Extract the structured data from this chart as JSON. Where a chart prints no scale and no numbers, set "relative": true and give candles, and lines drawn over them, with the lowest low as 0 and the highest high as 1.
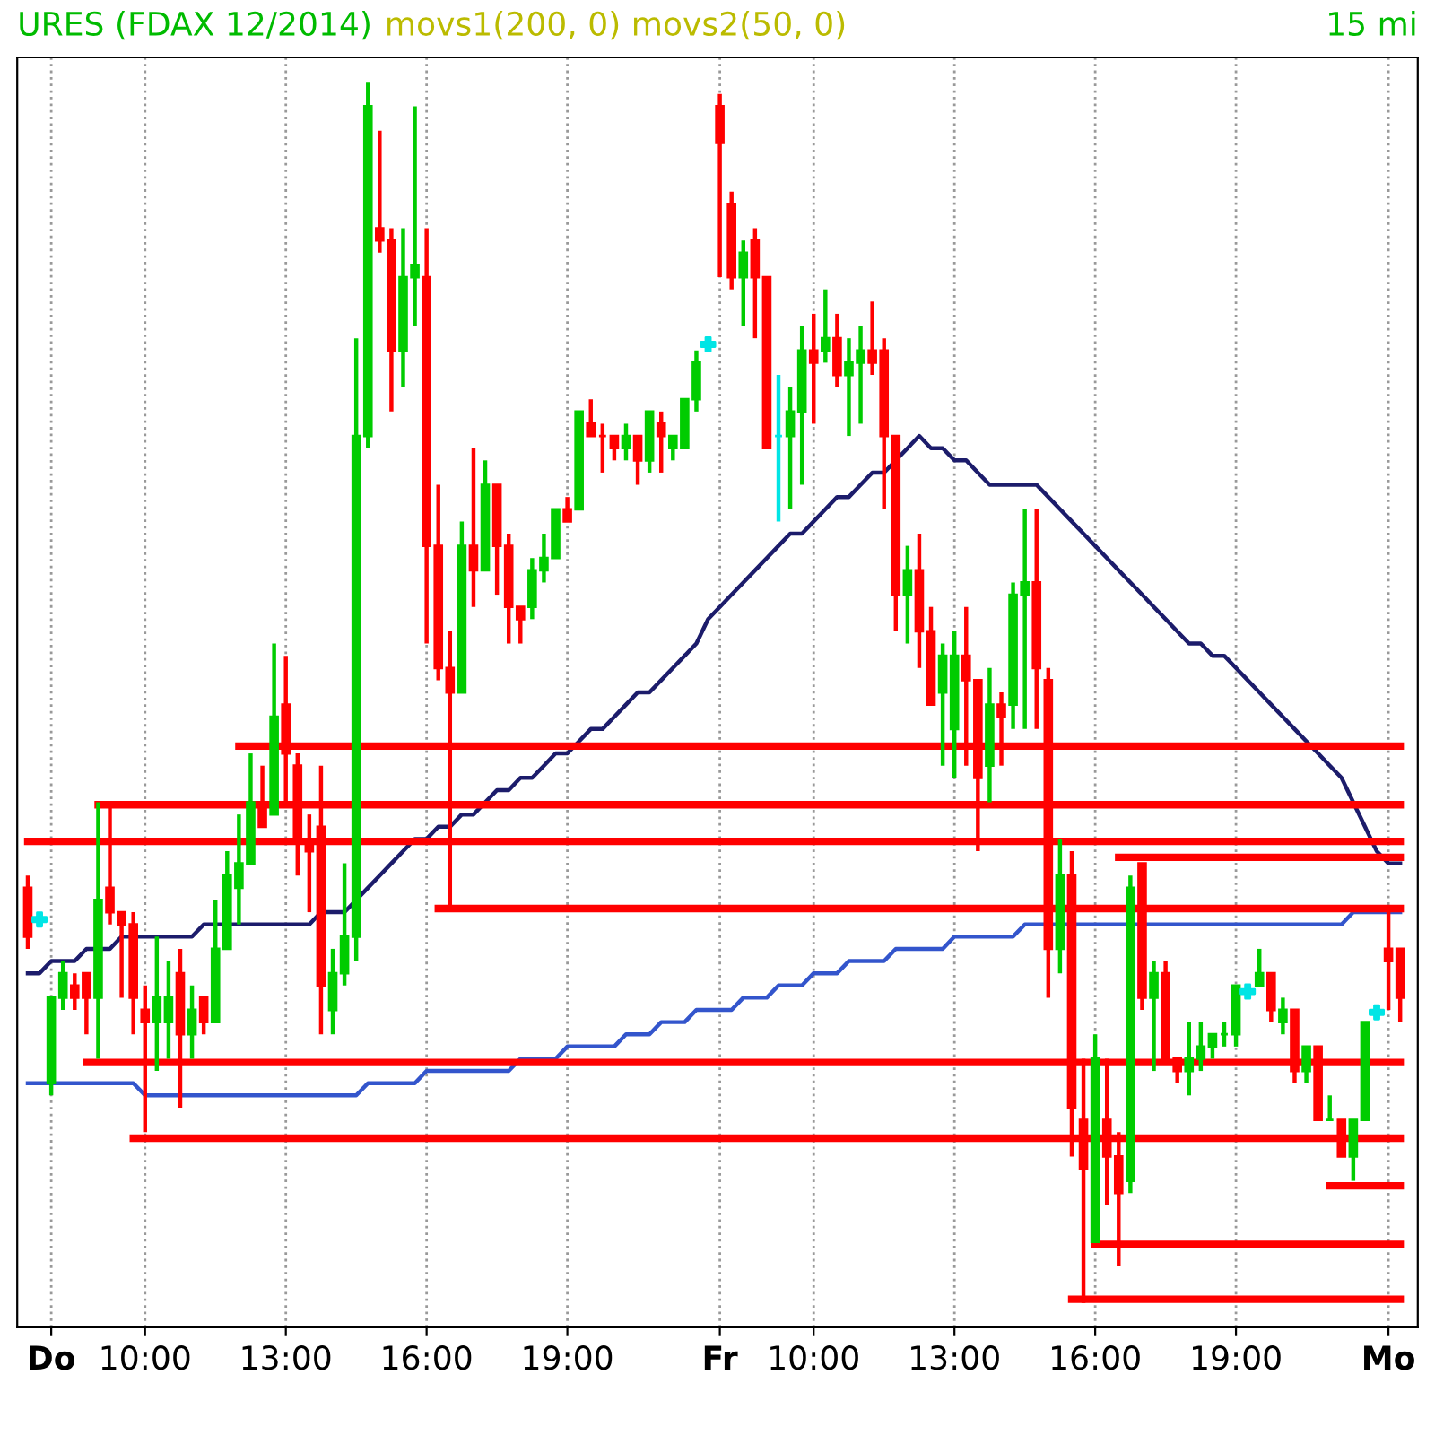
{
  "chart_data": {
    "type": "candlestick",
    "title": "URES (FDAX 12/2014)",
    "subtitle": "movs1(200, 0) movs2(50, 0)",
    "annotations": [
      "15 mi"
    ],
    "relative": true,
    "grid": "x",
    "tick_labels": "x",
    "categories": [
      null,
      null,
      "Do",
      null,
      null,
      null,
      null,
      null,
      null,
      null,
      "10:00",
      null,
      null,
      null,
      null,
      null,
      null,
      null,
      null,
      null,
      null,
      null,
      "13:00",
      null,
      null,
      null,
      null,
      null,
      null,
      null,
      null,
      null,
      null,
      null,
      "16:00",
      null,
      null,
      null,
      null,
      null,
      null,
      null,
      null,
      null,
      null,
      null,
      "19:00",
      null,
      null,
      null,
      null,
      null,
      null,
      null,
      null,
      null,
      null,
      null,
      null,
      "Fr",
      null,
      null,
      null,
      null,
      null,
      null,
      null,
      "10:00",
      null,
      null,
      null,
      null,
      null,
      null,
      null,
      null,
      null,
      null,
      null,
      "13:00",
      null,
      null,
      null,
      null,
      null,
      null,
      null,
      null,
      null,
      null,
      null,
      "16:00",
      null,
      null,
      null,
      null,
      null,
      null,
      null,
      null,
      null,
      null,
      null,
      "19:00",
      null,
      null,
      null,
      null,
      null,
      null,
      null,
      null,
      null,
      null,
      null,
      null,
      "Mo",
      null
    ],
    "ohlc": [
      [
        0.34,
        0.35,
        0.29,
        0.3
      ],
      null,
      [
        0.18,
        0.25,
        0.17,
        0.25
      ],
      [
        0.25,
        0.28,
        0.24,
        0.27
      ],
      [
        0.26,
        0.27,
        0.24,
        0.25
      ],
      [
        0.27,
        0.27,
        0.22,
        0.25
      ],
      [
        0.25,
        0.41,
        0.2,
        0.33
      ],
      [
        0.34,
        0.41,
        0.31,
        0.32
      ],
      [
        0.32,
        0.32,
        0.25,
        0.31
      ],
      [
        0.31,
        0.32,
        0.22,
        0.25
      ],
      [
        0.24,
        0.26,
        0.14,
        0.23
      ],
      [
        0.23,
        0.3,
        0.19,
        0.25
      ],
      [
        0.23,
        0.28,
        0.2,
        0.25
      ],
      [
        0.27,
        0.29,
        0.16,
        0.22
      ],
      [
        0.22,
        0.26,
        0.2,
        0.24
      ],
      [
        0.25,
        0.25,
        0.22,
        0.23
      ],
      [
        0.23,
        0.33,
        0.23,
        0.29
      ],
      [
        0.29,
        0.37,
        0.29,
        0.35
      ],
      [
        0.34,
        0.4,
        0.31,
        0.36
      ],
      [
        0.36,
        0.45,
        0.36,
        0.41
      ],
      [
        0.41,
        0.44,
        0.39,
        0.39
      ],
      [
        0.4,
        0.54,
        0.4,
        0.48
      ],
      [
        0.49,
        0.53,
        0.41,
        0.45
      ],
      [
        0.44,
        0.45,
        0.35,
        0.38
      ],
      [
        0.38,
        0.4,
        0.32,
        0.37
      ],
      [
        0.39,
        0.44,
        0.22,
        0.26
      ],
      [
        0.24,
        0.29,
        0.22,
        0.27
      ],
      [
        0.27,
        0.36,
        0.26,
        0.3
      ],
      [
        0.3,
        0.79,
        0.28,
        0.71
      ],
      [
        0.71,
        1.0,
        0.7,
        0.98
      ],
      [
        0.88,
        0.96,
        0.86,
        0.87
      ],
      [
        0.87,
        0.88,
        0.73,
        0.78
      ],
      [
        0.78,
        0.88,
        0.75,
        0.84
      ],
      [
        0.84,
        0.98,
        0.8,
        0.85
      ],
      [
        0.84,
        0.88,
        0.54,
        0.62
      ],
      [
        0.62,
        0.67,
        0.51,
        0.52
      ],
      [
        0.52,
        0.55,
        0.32,
        0.5
      ],
      [
        0.5,
        0.64,
        0.5,
        0.62
      ],
      [
        0.62,
        0.7,
        0.57,
        0.6
      ],
      [
        0.6,
        0.69,
        0.6,
        0.67
      ],
      [
        0.67,
        0.67,
        0.58,
        0.62
      ],
      [
        0.62,
        0.63,
        0.54,
        0.57
      ],
      [
        0.57,
        0.57,
        0.54,
        0.56
      ],
      [
        0.57,
        0.61,
        0.56,
        0.6
      ],
      [
        0.6,
        0.63,
        0.59,
        0.61
      ],
      [
        0.61,
        0.65,
        0.61,
        0.65
      ],
      [
        0.65,
        0.66,
        0.64,
        0.64
      ],
      [
        0.65,
        0.73,
        0.65,
        0.73
      ],
      [
        0.72,
        0.74,
        0.71,
        0.71
      ],
      [
        0.71,
        0.72,
        0.68,
        0.71
      ],
      [
        0.71,
        0.71,
        0.69,
        0.7
      ],
      [
        0.7,
        0.72,
        0.69,
        0.71
      ],
      [
        0.71,
        0.71,
        0.67,
        0.69
      ],
      [
        0.69,
        0.73,
        0.68,
        0.73
      ],
      [
        0.72,
        0.73,
        0.68,
        0.71
      ],
      [
        0.7,
        0.71,
        0.69,
        0.71
      ],
      [
        0.7,
        0.74,
        0.7,
        0.74
      ],
      [
        0.74,
        0.78,
        0.73,
        0.77
      ],
      null,
      [
        0.98,
        0.99,
        0.84,
        0.95
      ],
      [
        0.9,
        0.91,
        0.83,
        0.84
      ],
      [
        0.84,
        0.87,
        0.8,
        0.86
      ],
      [
        0.87,
        0.88,
        0.79,
        0.84
      ],
      [
        0.84,
        0.84,
        0.7,
        0.7
      ],
      [
        0.71,
        0.76,
        0.64,
        0.71
      ],
      [
        0.71,
        0.75,
        0.65,
        0.73
      ],
      [
        0.73,
        0.8,
        0.67,
        0.78
      ],
      [
        0.78,
        0.81,
        0.72,
        0.77
      ],
      [
        0.78,
        0.83,
        0.77,
        0.79
      ],
      [
        0.79,
        0.81,
        0.75,
        0.76
      ],
      [
        0.76,
        0.79,
        0.71,
        0.77
      ],
      [
        0.77,
        0.8,
        0.72,
        0.78
      ],
      [
        0.78,
        0.82,
        0.76,
        0.77
      ],
      [
        0.78,
        0.79,
        0.65,
        0.71
      ],
      [
        0.71,
        0.71,
        0.55,
        0.58
      ],
      [
        0.58,
        0.62,
        0.54,
        0.6
      ],
      [
        0.6,
        0.63,
        0.52,
        0.55
      ],
      [
        0.55,
        0.57,
        0.49,
        0.49
      ],
      [
        0.5,
        0.54,
        0.44,
        0.53
      ],
      [
        0.47,
        0.55,
        0.43,
        0.53
      ],
      [
        0.53,
        0.57,
        0.44,
        0.51
      ],
      [
        0.51,
        0.51,
        0.37,
        0.43
      ],
      [
        0.44,
        0.52,
        0.41,
        0.49
      ],
      [
        0.49,
        0.5,
        0.44,
        0.48
      ],
      [
        0.49,
        0.59,
        0.47,
        0.58
      ],
      [
        0.58,
        0.65,
        0.47,
        0.59
      ],
      [
        0.59,
        0.65,
        0.47,
        0.52
      ],
      [
        0.51,
        0.52,
        0.25,
        0.29
      ],
      [
        0.29,
        0.38,
        0.27,
        0.35
      ],
      [
        0.35,
        0.37,
        0.12,
        0.16
      ],
      [
        0.15,
        0.2,
        0,
        0.11
      ],
      [
        0.05,
        0.22,
        0.05,
        0.2
      ],
      [
        0.15,
        0.2,
        0.08,
        0.12
      ],
      [
        0.12,
        0.14,
        0.03,
        0.09
      ],
      [
        0.1,
        0.35,
        0.09,
        0.34
      ],
      [
        0.36,
        0.36,
        0.24,
        0.25
      ],
      [
        0.25,
        0.28,
        0.19,
        0.27
      ],
      [
        0.27,
        0.28,
        0.2,
        0.2
      ],
      [
        0.2,
        0.2,
        0.18,
        0.19
      ],
      [
        0.19,
        0.23,
        0.17,
        0.2
      ],
      [
        0.2,
        0.23,
        0.19,
        0.21
      ],
      [
        0.21,
        0.22,
        0.2,
        0.22
      ],
      [
        0.22,
        0.23,
        0.21,
        0.22
      ],
      [
        0.22,
        0.26,
        0.21,
        0.26
      ],
      null,
      [
        0.26,
        0.29,
        0.26,
        0.27
      ],
      [
        0.27,
        0.27,
        0.23,
        0.24
      ],
      [
        0.23,
        0.25,
        0.22,
        0.24
      ],
      [
        0.24,
        0.24,
        0.18,
        0.19
      ],
      [
        0.19,
        0.21,
        0.18,
        0.21
      ],
      [
        0.21,
        0.21,
        0.15,
        0.15
      ],
      [
        0.15,
        0.17,
        0.15,
        0.15
      ],
      [
        0.15,
        0.15,
        0.12,
        0.12
      ],
      [
        0.12,
        0.15,
        0.1,
        0.15
      ],
      [
        0.15,
        0.23,
        0.15,
        0.23
      ],
      null,
      [
        0.29,
        0.32,
        0.24,
        0.28
      ],
      [
        0.29,
        0.29,
        0.23,
        0.25
      ]
    ],
    "colors": [
      "#ff0000",
      null,
      "#00cc00",
      "#00cc00",
      "#ff0000",
      "#ff0000",
      "#00cc00",
      "#ff0000",
      "#ff0000",
      "#ff0000",
      "#ff0000",
      "#00cc00",
      "#00cc00",
      "#ff0000",
      "#00cc00",
      "#ff0000",
      "#00cc00",
      "#00cc00",
      "#00cc00",
      "#00cc00",
      "#ff0000",
      "#00cc00",
      "#ff0000",
      "#ff0000",
      "#ff0000",
      "#ff0000",
      "#00cc00",
      "#00cc00",
      "#00cc00",
      "#00cc00",
      "#ff0000",
      "#ff0000",
      "#00cc00",
      "#00cc00",
      "#ff0000",
      "#ff0000",
      "#ff0000",
      "#00cc00",
      "#ff0000",
      "#00cc00",
      "#ff0000",
      "#ff0000",
      "#ff0000",
      "#00cc00",
      "#00cc00",
      "#00cc00",
      "#ff0000",
      "#00cc00",
      "#ff0000",
      "#ff0000",
      "#ff0000",
      "#00cc00",
      "#ff0000",
      "#00cc00",
      "#ff0000",
      "#00cc00",
      "#00cc00",
      "#00cc00",
      null,
      "#ff0000",
      "#ff0000",
      "#00cc00",
      "#ff0000",
      "#ff0000",
      "#00e5e5",
      "#00cc00",
      "#00cc00",
      "#ff0000",
      "#00cc00",
      "#ff0000",
      "#00cc00",
      "#00cc00",
      "#ff0000",
      "#ff0000",
      "#ff0000",
      "#00cc00",
      "#ff0000",
      "#ff0000",
      "#00cc00",
      "#00cc00",
      "#ff0000",
      "#ff0000",
      "#00cc00",
      "#ff0000",
      "#00cc00",
      "#00cc00",
      "#ff0000",
      "#ff0000",
      "#00cc00",
      "#ff0000",
      "#ff0000",
      "#00cc00",
      "#ff0000",
      "#ff0000",
      "#00cc00",
      "#ff0000",
      "#00cc00",
      "#ff0000",
      "#ff0000",
      "#00cc00",
      "#00cc00",
      "#00cc00",
      "#00cc00",
      "#00cc00",
      null,
      "#00cc00",
      "#ff0000",
      "#00cc00",
      "#ff0000",
      "#00cc00",
      "#ff0000",
      "#00cc00",
      "#ff0000",
      "#00cc00",
      "#00cc00",
      null,
      "#ff0000",
      "#ff0000"
    ],
    "series": [
      {
        "type": "line",
        "color": "#1c1c6b",
        "values": [
          0.27,
          0.27,
          0.28,
          0.28,
          0.28,
          0.29,
          0.29,
          0.29,
          0.3,
          0.3,
          0.3,
          0.3,
          0.3,
          0.3,
          0.3,
          0.31,
          0.31,
          0.31,
          0.31,
          0.31,
          0.31,
          0.31,
          0.31,
          0.31,
          0.31,
          0.32,
          0.32,
          0.32,
          0.33,
          0.34,
          0.35,
          0.36,
          0.37,
          0.38,
          0.38,
          0.39,
          0.39,
          0.4,
          0.4,
          0.41,
          0.42,
          0.42,
          0.43,
          0.43,
          0.44,
          0.45,
          0.45,
          0.46,
          0.47,
          0.47,
          0.48,
          0.49,
          0.5,
          0.5,
          0.51,
          0.52,
          0.53,
          0.54,
          0.56,
          0.57,
          0.58,
          0.59,
          0.6,
          0.61,
          0.62,
          0.63,
          0.63,
          0.64,
          0.65,
          0.66,
          0.66,
          0.67,
          0.68,
          0.68,
          0.69,
          0.7,
          0.71,
          0.7,
          0.7,
          0.69,
          0.69,
          0.68,
          0.67,
          0.67,
          0.67,
          0.67,
          0.67,
          0.66,
          0.65,
          0.64,
          0.63,
          0.62,
          0.61,
          0.6,
          0.59,
          0.58,
          0.57,
          0.56,
          0.55,
          0.54,
          0.54,
          0.53,
          0.53,
          0.52,
          0.51,
          0.5,
          0.49,
          0.48,
          0.47,
          0.46,
          0.45,
          0.44,
          0.43,
          0.41,
          0.39,
          0.37,
          0.36,
          0.36
        ]
      },
      {
        "type": "line",
        "color": "#3355cc",
        "values": [
          0.18,
          0.18,
          0.18,
          0.18,
          0.18,
          0.18,
          0.18,
          0.18,
          0.18,
          0.18,
          0.17,
          0.17,
          0.17,
          0.17,
          0.17,
          0.17,
          0.17,
          0.17,
          0.17,
          0.17,
          0.17,
          0.17,
          0.17,
          0.17,
          0.17,
          0.17,
          0.17,
          0.17,
          0.17,
          0.18,
          0.18,
          0.18,
          0.18,
          0.18,
          0.19,
          0.19,
          0.19,
          0.19,
          0.19,
          0.19,
          0.19,
          0.19,
          0.2,
          0.2,
          0.2,
          0.2,
          0.21,
          0.21,
          0.21,
          0.21,
          0.21,
          0.22,
          0.22,
          0.22,
          0.23,
          0.23,
          0.23,
          0.24,
          0.24,
          0.24,
          0.24,
          0.25,
          0.25,
          0.25,
          0.26,
          0.26,
          0.26,
          0.27,
          0.27,
          0.27,
          0.28,
          0.28,
          0.28,
          0.28,
          0.29,
          0.29,
          0.29,
          0.29,
          0.29,
          0.3,
          0.3,
          0.3,
          0.3,
          0.3,
          0.3,
          0.31,
          0.31,
          0.31,
          0.31,
          0.31,
          0.31,
          0.31,
          0.31,
          0.31,
          0.31,
          0.31,
          0.31,
          0.31,
          0.31,
          0.31,
          0.31,
          0.31,
          0.31,
          0.31,
          0.31,
          0.31,
          0.31,
          0.31,
          0.31,
          0.31,
          0.31,
          0.31,
          0.31,
          0.32,
          0.32,
          0.32,
          0.32,
          0.32
        ]
      },
      {
        "type": "line",
        "color": "#ff0000",
        "values": [
          null,
          null,
          null,
          null,
          null,
          null,
          null,
          null,
          null,
          null,
          null,
          null,
          null,
          null,
          null,
          null,
          null,
          null,
          0.456,
          0.456,
          0.456,
          0.456,
          0.456,
          0.456,
          0.456,
          0.456,
          0.456,
          0.456,
          0.456,
          0.456,
          0.456,
          0.456,
          0.456,
          0.456,
          0.456,
          0.456,
          0.456,
          0.456,
          0.456,
          0.456,
          0.456,
          0.456,
          0.456,
          0.456,
          0.456,
          0.456,
          0.456,
          0.456,
          0.456,
          0.456,
          0.456,
          0.456,
          0.456,
          0.456,
          0.456,
          0.456,
          0.456,
          0.456,
          0.456,
          0.456,
          0.456,
          0.456,
          0.456,
          0.456,
          0.456,
          0.456,
          0.456,
          0.456,
          0.456,
          0.456,
          0.456,
          0.456,
          0.456,
          0.456,
          0.456,
          0.456,
          0.456,
          0.456,
          0.456,
          0.456,
          0.456,
          0.456,
          0.456,
          0.456,
          0.456,
          0.456,
          0.456,
          0.456,
          0.456,
          0.456,
          0.456,
          0.456,
          0.456,
          0.456,
          0.456,
          0.456,
          0.456,
          0.456,
          0.456,
          0.456,
          0.456,
          0.456,
          0.456,
          0.456,
          0.456,
          0.456,
          0.456,
          0.456,
          0.456,
          0.456,
          0.456,
          0.456,
          0.456,
          0.456,
          0.456,
          0.456,
          0.456,
          0.456
        ]
      },
      {
        "type": "line",
        "color": "#ff0000",
        "values": [
          null,
          null,
          null,
          null,
          null,
          null,
          0.408,
          0.408,
          0.408,
          0.408,
          0.408,
          0.408,
          0.408,
          0.408,
          0.408,
          0.408,
          0.408,
          0.408,
          0.408,
          0.408,
          0.408,
          0.408,
          0.408,
          0.408,
          0.408,
          0.408,
          0.408,
          0.408,
          0.408,
          0.408,
          0.408,
          0.408,
          0.408,
          0.408,
          0.408,
          0.408,
          0.408,
          0.408,
          0.408,
          0.408,
          0.408,
          0.408,
          0.408,
          0.408,
          0.408,
          0.408,
          0.408,
          0.408,
          0.408,
          0.408,
          0.408,
          0.408,
          0.408,
          0.408,
          0.408,
          0.408,
          0.408,
          0.408,
          0.408,
          0.408,
          0.408,
          0.408,
          0.408,
          0.408,
          0.408,
          0.408,
          0.408,
          0.408,
          0.408,
          0.408,
          0.408,
          0.408,
          0.408,
          0.408,
          0.408,
          0.408,
          0.408,
          0.408,
          0.408,
          0.408,
          0.408,
          0.408,
          0.408,
          0.408,
          0.408,
          0.408,
          0.408,
          0.408,
          0.408,
          0.408,
          0.408,
          0.408,
          0.408,
          0.408,
          0.408,
          0.408,
          0.408,
          0.408,
          0.408,
          0.408,
          0.408,
          0.408,
          0.408,
          0.408,
          0.408,
          0.408,
          0.408,
          0.408,
          0.408,
          0.408,
          0.408,
          0.408,
          0.408,
          0.408,
          0.408,
          0.408,
          0.408,
          0.408
        ]
      },
      {
        "type": "line",
        "color": "#ff0000",
        "values": [
          0.378,
          0.378,
          0.378,
          0.378,
          0.378,
          0.378,
          0.378,
          0.378,
          0.378,
          0.378,
          0.378,
          0.378,
          0.378,
          0.378,
          0.378,
          0.378,
          0.378,
          0.378,
          0.378,
          0.378,
          0.378,
          0.378,
          0.378,
          0.378,
          0.378,
          0.378,
          0.378,
          0.378,
          0.378,
          0.378,
          0.378,
          0.378,
          0.378,
          0.378,
          0.378,
          0.378,
          0.378,
          0.378,
          0.378,
          0.378,
          0.378,
          0.378,
          0.378,
          0.378,
          0.378,
          0.378,
          0.378,
          0.378,
          0.378,
          0.378,
          0.378,
          0.378,
          0.378,
          0.378,
          0.378,
          0.378,
          0.378,
          0.378,
          0.378,
          0.378,
          0.378,
          0.378,
          0.378,
          0.378,
          0.378,
          0.378,
          0.378,
          0.378,
          0.378,
          0.378,
          0.378,
          0.378,
          0.378,
          0.378,
          0.378,
          0.378,
          0.378,
          0.378,
          0.378,
          0.378,
          0.378,
          0.378,
          0.378,
          0.378,
          0.378,
          0.378,
          0.378,
          0.378,
          0.378,
          0.378,
          0.378,
          0.378,
          0.378,
          0.378,
          0.378,
          0.378,
          0.378,
          0.378,
          0.378,
          0.378,
          0.378,
          0.378,
          0.378,
          0.378,
          0.378,
          0.378,
          0.378,
          0.378,
          0.378,
          0.378,
          0.378,
          0.378,
          0.378,
          0.378,
          0.378,
          0.378,
          0.378,
          0.378
        ]
      },
      {
        "type": "line",
        "color": "#ff0000",
        "values": [
          null,
          null,
          null,
          null,
          null,
          null,
          null,
          null,
          null,
          null,
          null,
          null,
          null,
          null,
          null,
          null,
          null,
          null,
          null,
          null,
          null,
          null,
          null,
          null,
          null,
          null,
          null,
          null,
          null,
          null,
          null,
          null,
          null,
          null,
          null,
          null,
          null,
          null,
          null,
          null,
          null,
          null,
          null,
          null,
          null,
          null,
          null,
          null,
          null,
          null,
          null,
          null,
          null,
          null,
          null,
          null,
          null,
          null,
          null,
          null,
          null,
          null,
          null,
          null,
          null,
          null,
          null,
          null,
          null,
          null,
          null,
          null,
          null,
          null,
          null,
          null,
          null,
          null,
          null,
          null,
          null,
          null,
          null,
          null,
          null,
          null,
          null,
          null,
          null,
          null,
          null,
          null,
          null,
          0.365,
          0.365,
          0.365,
          0.365,
          0.365,
          0.365,
          0.365,
          0.365,
          0.365,
          0.365,
          0.365,
          0.365,
          0.365,
          0.365,
          0.365,
          0.365,
          0.365,
          0.365,
          0.365,
          0.365,
          0.365,
          0.365,
          0.365,
          0.365,
          0.365
        ]
      },
      {
        "type": "line",
        "color": "#ff0000",
        "values": [
          null,
          null,
          null,
          null,
          null,
          null,
          null,
          null,
          null,
          null,
          null,
          null,
          null,
          null,
          null,
          null,
          null,
          null,
          null,
          null,
          null,
          null,
          null,
          null,
          null,
          null,
          null,
          null,
          null,
          null,
          null,
          null,
          null,
          null,
          null,
          0.323,
          0.323,
          0.323,
          0.323,
          0.323,
          0.323,
          0.323,
          0.323,
          0.323,
          0.323,
          0.323,
          0.323,
          0.323,
          0.323,
          0.323,
          0.323,
          0.323,
          0.323,
          0.323,
          0.323,
          0.323,
          0.323,
          0.323,
          0.323,
          0.323,
          0.323,
          0.323,
          0.323,
          0.323,
          0.323,
          0.323,
          0.323,
          0.323,
          0.323,
          0.323,
          0.323,
          0.323,
          0.323,
          0.323,
          0.323,
          0.323,
          0.323,
          0.323,
          0.323,
          0.323,
          0.323,
          0.323,
          0.323,
          0.323,
          0.323,
          0.323,
          0.323,
          0.323,
          0.323,
          0.323,
          0.323,
          0.323,
          0.323,
          0.323,
          0.323,
          0.323,
          0.323,
          0.323,
          0.323,
          0.323,
          0.323,
          0.323,
          0.323,
          0.323,
          0.323,
          0.323,
          0.323,
          0.323,
          0.323,
          0.323,
          0.323,
          0.323,
          0.323,
          0.323,
          0.323,
          0.323,
          0.323,
          0.323
        ]
      },
      {
        "type": "line",
        "color": "#ff0000",
        "values": [
          null,
          null,
          null,
          null,
          null,
          0.197,
          0.197,
          0.197,
          0.197,
          0.197,
          0.197,
          0.197,
          0.197,
          0.197,
          0.197,
          0.197,
          0.197,
          0.197,
          0.197,
          0.197,
          0.197,
          0.197,
          0.197,
          0.197,
          0.197,
          0.197,
          0.197,
          0.197,
          0.197,
          0.197,
          0.197,
          0.197,
          0.197,
          0.197,
          0.197,
          0.197,
          0.197,
          0.197,
          0.197,
          0.197,
          0.197,
          0.197,
          0.197,
          0.197,
          0.197,
          0.197,
          0.197,
          0.197,
          0.197,
          0.197,
          0.197,
          0.197,
          0.197,
          0.197,
          0.197,
          0.197,
          0.197,
          0.197,
          0.197,
          0.197,
          0.197,
          0.197,
          0.197,
          0.197,
          0.197,
          0.197,
          0.197,
          0.197,
          0.197,
          0.197,
          0.197,
          0.197,
          0.197,
          0.197,
          0.197,
          0.197,
          0.197,
          0.197,
          0.197,
          0.197,
          0.197,
          0.197,
          0.197,
          0.197,
          0.197,
          0.197,
          0.197,
          0.197,
          0.197,
          0.197,
          0.197,
          0.197,
          0.197,
          0.197,
          0.197,
          0.197,
          0.197,
          0.197,
          0.197,
          0.197,
          0.197,
          0.197,
          0.197,
          0.197,
          0.197,
          0.197,
          0.197,
          0.197,
          0.197,
          0.197,
          0.197,
          0.197,
          0.197,
          0.197,
          0.197,
          0.197,
          0.197,
          0.197
        ]
      },
      {
        "type": "line",
        "color": "#ff0000",
        "values": [
          null,
          null,
          null,
          null,
          null,
          null,
          null,
          null,
          null,
          0.135,
          0.135,
          0.135,
          0.135,
          0.135,
          0.135,
          0.135,
          0.135,
          0.135,
          0.135,
          0.135,
          0.135,
          0.135,
          0.135,
          0.135,
          0.135,
          0.135,
          0.135,
          0.135,
          0.135,
          0.135,
          0.135,
          0.135,
          0.135,
          0.135,
          0.135,
          0.135,
          0.135,
          0.135,
          0.135,
          0.135,
          0.135,
          0.135,
          0.135,
          0.135,
          0.135,
          0.135,
          0.135,
          0.135,
          0.135,
          0.135,
          0.135,
          0.135,
          0.135,
          0.135,
          0.135,
          0.135,
          0.135,
          0.135,
          0.135,
          0.135,
          0.135,
          0.135,
          0.135,
          0.135,
          0.135,
          0.135,
          0.135,
          0.135,
          0.135,
          0.135,
          0.135,
          0.135,
          0.135,
          0.135,
          0.135,
          0.135,
          0.135,
          0.135,
          0.135,
          0.135,
          0.135,
          0.135,
          0.135,
          0.135,
          0.135,
          0.135,
          0.135,
          0.135,
          0.135,
          0.135,
          0.135,
          0.135,
          0.135,
          0.135,
          0.135,
          0.135,
          0.135,
          0.135,
          0.135,
          0.135,
          0.135,
          0.135,
          0.135,
          0.135,
          0.135,
          0.135,
          0.135,
          0.135,
          0.135,
          0.135,
          0.135,
          0.135,
          0.135,
          0.135,
          0.135,
          0.135,
          0.135,
          0.135
        ]
      },
      {
        "type": "line",
        "color": "#ff0000",
        "values": [
          null,
          null,
          null,
          null,
          null,
          null,
          null,
          null,
          null,
          null,
          null,
          null,
          null,
          null,
          null,
          null,
          null,
          null,
          null,
          null,
          null,
          null,
          null,
          null,
          null,
          null,
          null,
          null,
          null,
          null,
          null,
          null,
          null,
          null,
          null,
          null,
          null,
          null,
          null,
          null,
          null,
          null,
          null,
          null,
          null,
          null,
          null,
          null,
          null,
          null,
          null,
          null,
          null,
          null,
          null,
          null,
          null,
          null,
          null,
          null,
          null,
          null,
          null,
          null,
          null,
          null,
          null,
          null,
          null,
          null,
          null,
          null,
          null,
          null,
          null,
          null,
          null,
          null,
          null,
          null,
          null,
          null,
          null,
          null,
          null,
          null,
          null,
          null,
          null,
          null,
          null,
          null,
          null,
          null,
          null,
          null,
          null,
          null,
          null,
          null,
          null,
          null,
          null,
          null,
          null,
          null,
          null,
          null,
          null,
          null,
          null,
          0.096,
          0.096,
          0.096,
          0.096,
          0.096,
          0.096,
          0.096
        ]
      },
      {
        "type": "line",
        "color": "#ff0000",
        "values": [
          null,
          null,
          null,
          null,
          null,
          null,
          null,
          null,
          null,
          null,
          null,
          null,
          null,
          null,
          null,
          null,
          null,
          null,
          null,
          null,
          null,
          null,
          null,
          null,
          null,
          null,
          null,
          null,
          null,
          null,
          null,
          null,
          null,
          null,
          null,
          null,
          null,
          null,
          null,
          null,
          null,
          null,
          null,
          null,
          null,
          null,
          null,
          null,
          null,
          null,
          null,
          null,
          null,
          null,
          null,
          null,
          null,
          null,
          null,
          null,
          null,
          null,
          null,
          null,
          null,
          null,
          null,
          null,
          null,
          null,
          null,
          null,
          null,
          null,
          null,
          null,
          null,
          null,
          null,
          null,
          null,
          null,
          null,
          null,
          null,
          null,
          null,
          null,
          null,
          null,
          null,
          0.048,
          0.048,
          0.048,
          0.048,
          0.048,
          0.048,
          0.048,
          0.048,
          0.048,
          0.048,
          0.048,
          0.048,
          0.048,
          0.048,
          0.048,
          0.048,
          0.048,
          0.048,
          0.048,
          0.048,
          0.048,
          0.048,
          0.048,
          0.048,
          0.048,
          0.048,
          0.048
        ]
      },
      {
        "type": "line",
        "color": "#ff0000",
        "values": [
          null,
          null,
          null,
          null,
          null,
          null,
          null,
          null,
          null,
          null,
          null,
          null,
          null,
          null,
          null,
          null,
          null,
          null,
          null,
          null,
          null,
          null,
          null,
          null,
          null,
          null,
          null,
          null,
          null,
          null,
          null,
          null,
          null,
          null,
          null,
          null,
          null,
          null,
          null,
          null,
          null,
          null,
          null,
          null,
          null,
          null,
          null,
          null,
          null,
          null,
          null,
          null,
          null,
          null,
          null,
          null,
          null,
          null,
          null,
          null,
          null,
          null,
          null,
          null,
          null,
          null,
          null,
          null,
          null,
          null,
          null,
          null,
          null,
          null,
          null,
          null,
          null,
          null,
          null,
          null,
          null,
          null,
          null,
          null,
          null,
          null,
          null,
          null,
          null,
          0.003,
          0.003,
          0.003,
          0.003,
          0.003,
          0.003,
          0.003,
          0.003,
          0.003,
          0.003,
          0.003,
          0.003,
          0.003,
          0.003,
          0.003,
          0.003,
          0.003,
          0.003,
          0.003,
          0.003,
          0.003,
          0.003,
          0.003,
          0.003,
          0.003,
          0.003,
          0.003,
          0.003,
          0.003
        ]
      },
      {
        "type": "scatter",
        "color": "#00e5e5",
        "marker": "cross",
        "values": [
          null,
          0.314,
          null,
          null,
          null,
          null,
          null,
          null,
          null,
          null,
          null,
          null,
          null,
          null,
          null,
          null,
          null,
          null,
          null,
          null,
          null,
          null,
          null,
          null,
          null,
          null,
          null,
          null,
          null,
          null,
          null,
          null,
          null,
          null,
          null,
          null,
          null,
          null,
          null,
          null,
          null,
          null,
          null,
          null,
          null,
          null,
          null,
          null,
          null,
          null,
          null,
          null,
          null,
          null,
          null,
          null,
          null,
          null,
          0.785,
          null,
          null,
          null,
          null,
          null,
          null,
          null,
          null,
          null,
          null,
          null,
          null,
          null,
          null,
          null,
          null,
          null,
          null,
          null,
          null,
          null,
          null,
          null,
          null,
          null,
          null,
          null,
          null,
          null,
          null,
          null,
          null,
          null,
          null,
          null,
          null,
          null,
          null,
          null,
          null,
          null,
          null,
          null,
          null,
          null,
          0.255,
          null,
          null,
          null,
          null,
          null,
          null,
          null,
          null,
          null,
          null,
          0.238,
          null,
          null
        ]
      }
    ]
  }
}
